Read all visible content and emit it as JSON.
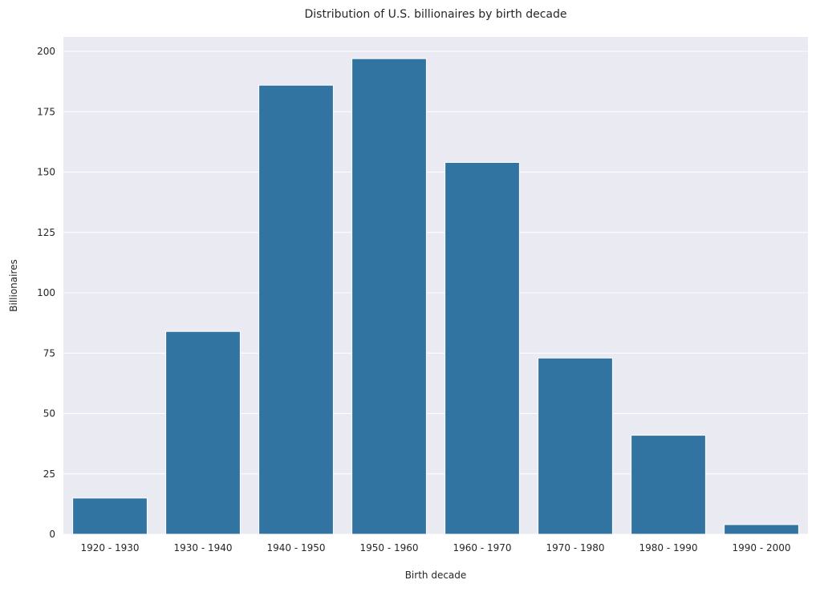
{
  "chart_data": {
    "type": "bar",
    "title": "Distribution of U.S. billionaires by birth decade",
    "xlabel": "Birth decade",
    "ylabel": "Billionaires",
    "categories": [
      "1920 - 1930",
      "1930 - 1940",
      "1940 - 1950",
      "1950 - 1960",
      "1960 - 1970",
      "1970 - 1980",
      "1980 - 1990",
      "1990 - 2000"
    ],
    "values": [
      15,
      84,
      186,
      197,
      154,
      73,
      41,
      4
    ],
    "ylim": [
      0,
      206
    ],
    "yticks": [
      0,
      25,
      50,
      75,
      100,
      125,
      150,
      175,
      200
    ],
    "grid": true,
    "colors": {
      "bar": "#3274a1",
      "plot_background": "#eaeaf2",
      "grid": "#ffffff"
    }
  }
}
